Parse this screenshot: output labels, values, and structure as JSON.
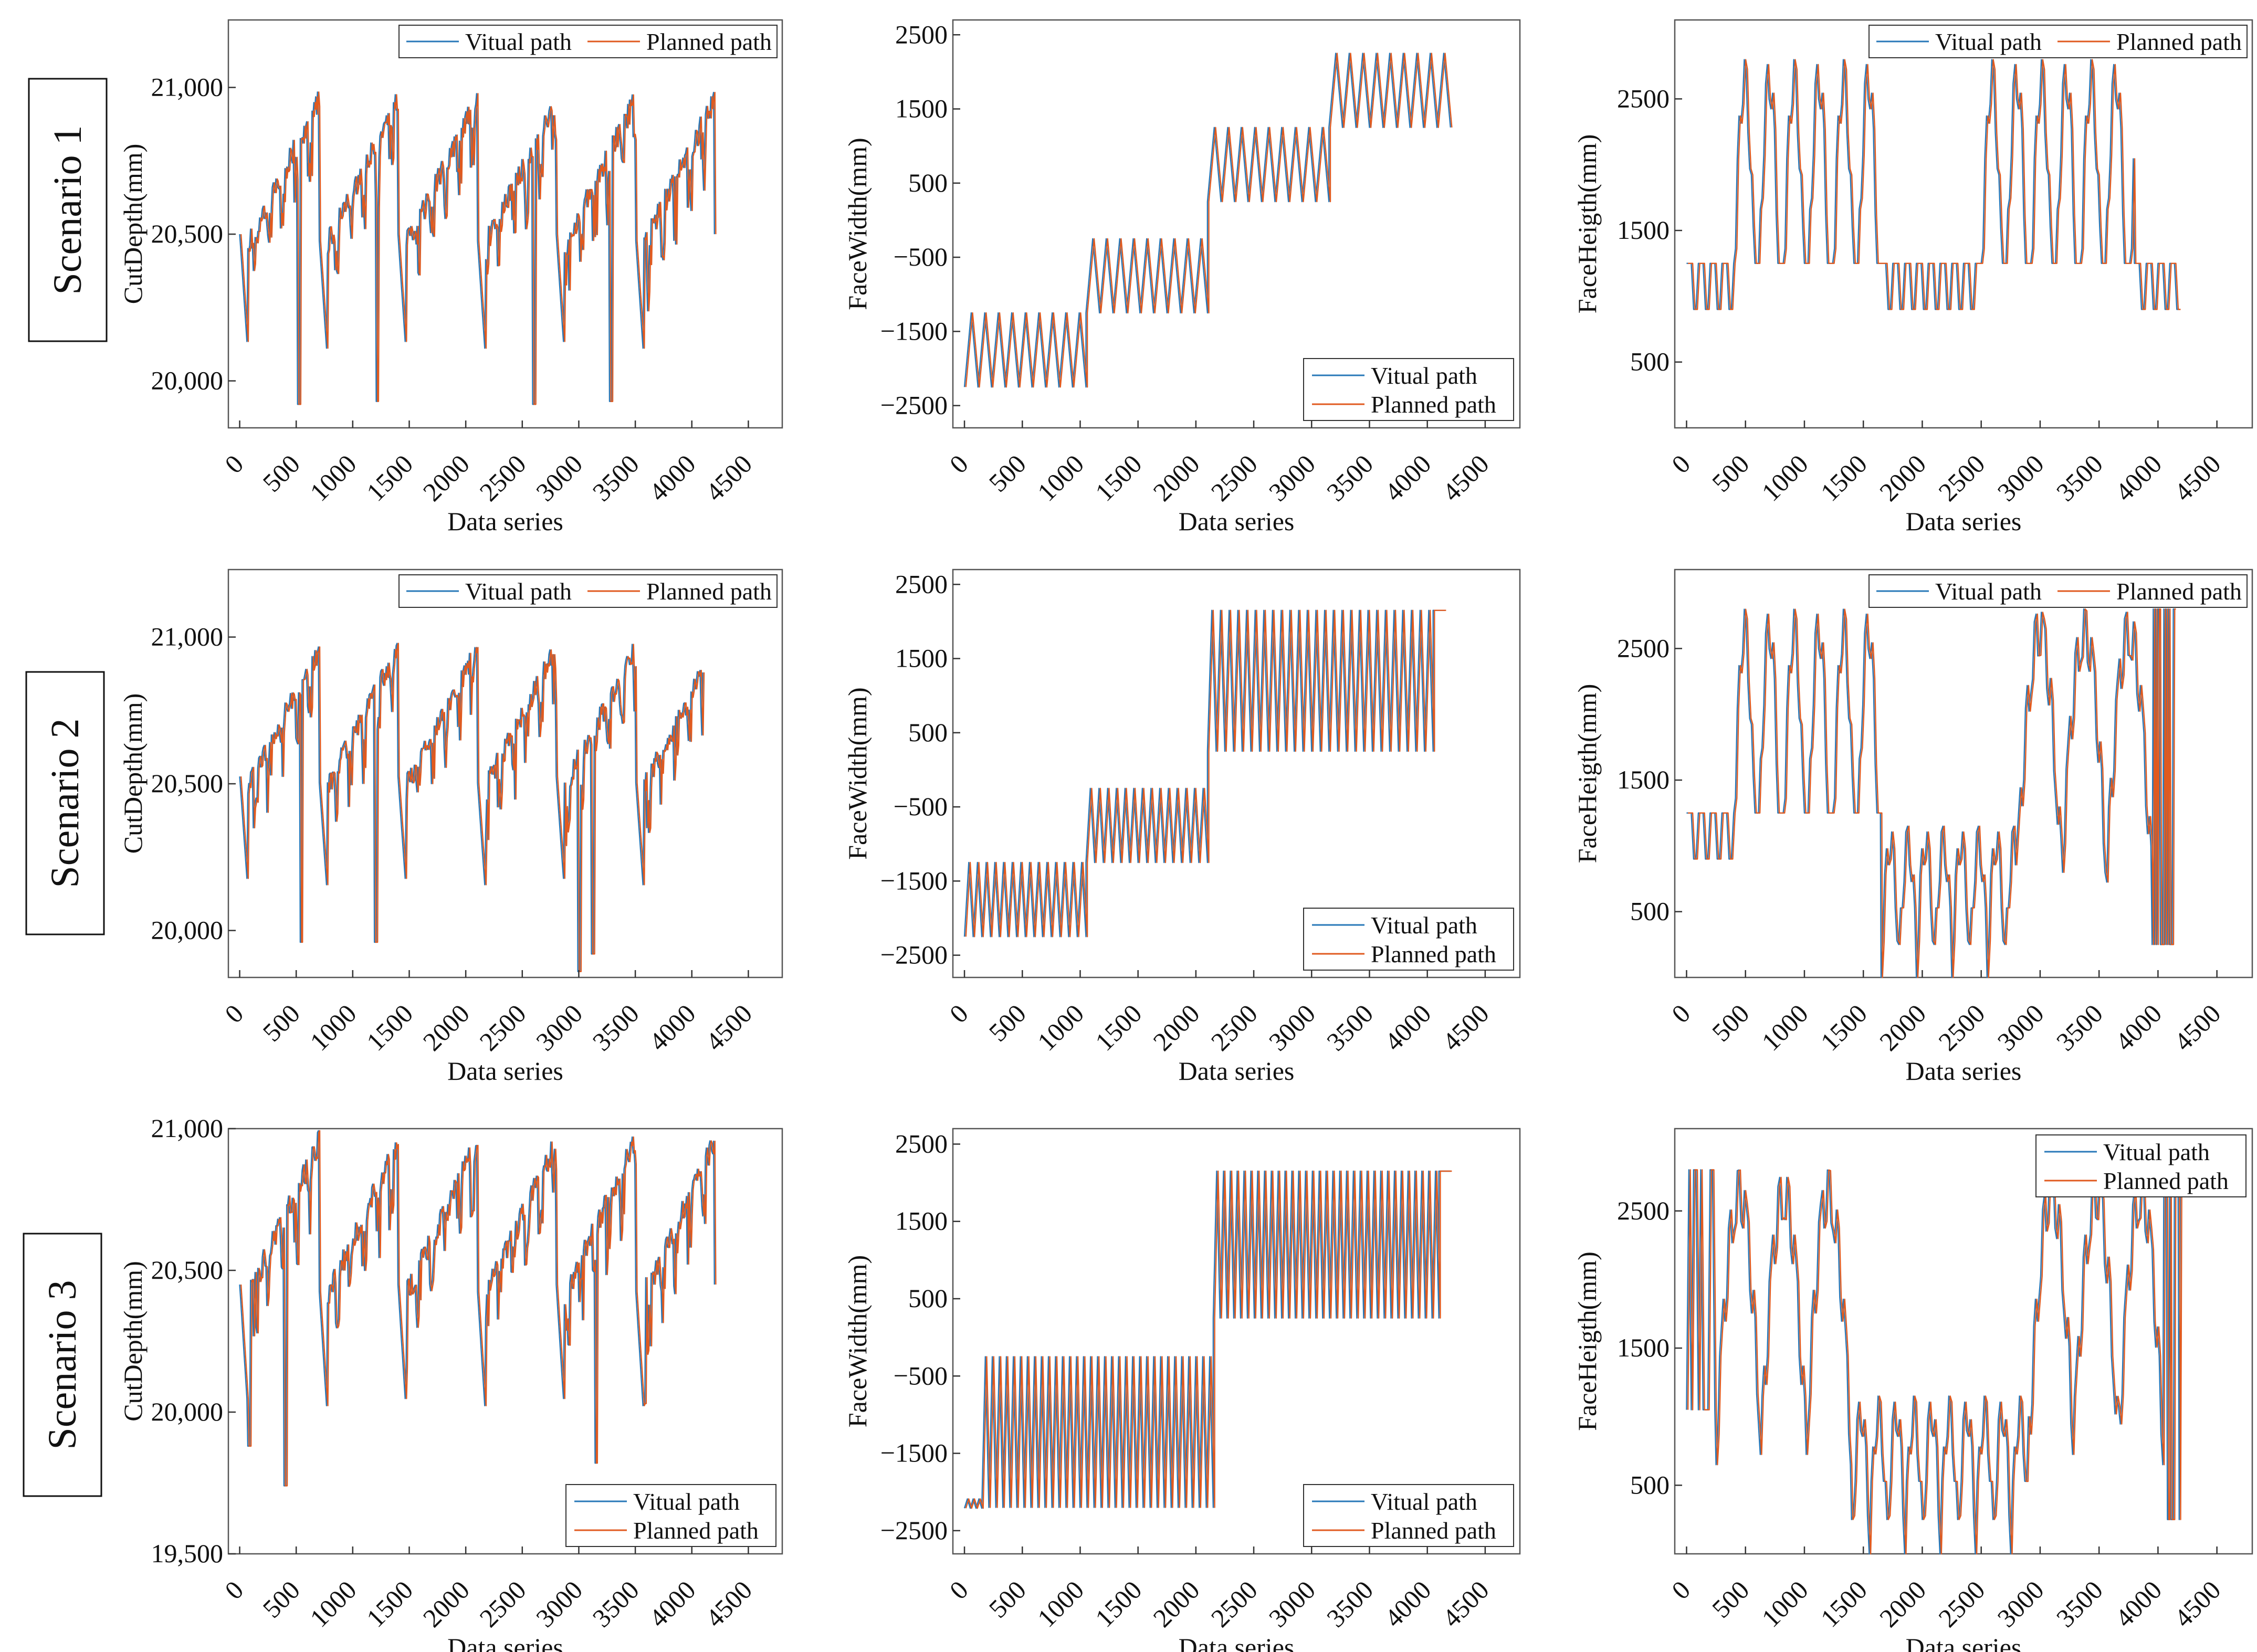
{
  "figure": {
    "scenario_labels": [
      "Scenario 1",
      "Scenario 2",
      "Scenario 3"
    ],
    "colors": {
      "virtual": "#2878b8",
      "planned": "#e05a1f",
      "axis": "#1a1a1a"
    }
  },
  "chart_data": [
    {
      "id": "s1-depth",
      "type": "line",
      "scenario": "Scenario 1",
      "title": "",
      "xlabel": "Data series",
      "ylabel": "CutDepth(mm)",
      "xlim": [
        -100,
        4800
      ],
      "ylim": [
        19840,
        21230
      ],
      "xticks": [
        0,
        500,
        1000,
        1500,
        2000,
        2500,
        3000,
        3500,
        4000,
        4500
      ],
      "yticks": [
        20000,
        20500,
        21000
      ],
      "ytick_labels": [
        "20,000",
        "20,500",
        "21,000"
      ],
      "legend_loc": "top-right",
      "gen": {
        "kind": "depth",
        "n": 4200,
        "period": 700,
        "min": 20000,
        "max": 21000,
        "spikes": [
          [
            520,
            19920
          ],
          [
            1210,
            19930
          ],
          [
            2600,
            19920
          ],
          [
            3280,
            19930
          ]
        ]
      },
      "series": [
        {
          "name": "Vitual path",
          "color": "#2878b8"
        },
        {
          "name": "Planned path",
          "color": "#e05a1f"
        }
      ]
    },
    {
      "id": "s1-width",
      "type": "line",
      "scenario": "Scenario 1",
      "title": "",
      "xlabel": "Data series",
      "ylabel": "FaceWidth(mm)",
      "xlim": [
        -100,
        4800
      ],
      "ylim": [
        -2800,
        2700
      ],
      "xticks": [
        0,
        500,
        1000,
        1500,
        2000,
        2500,
        3000,
        3500,
        4000,
        4500
      ],
      "yticks": [
        -2500,
        -1500,
        -500,
        500,
        1500,
        2500
      ],
      "ytick_labels": [
        "−2500",
        "−1500",
        "−500",
        "500",
        "1500",
        "2500"
      ],
      "legend_loc": "bottom-right",
      "gen": {
        "kind": "steps",
        "n": 4200,
        "cycles": 36,
        "levels": [
          [
            0,
            1050,
            -2250,
            -1250
          ],
          [
            1050,
            2100,
            -1250,
            -250
          ],
          [
            2100,
            3150,
            250,
            1250
          ],
          [
            3150,
            4200,
            1250,
            2250
          ]
        ]
      },
      "series": [
        {
          "name": "Vitual path",
          "color": "#2878b8"
        },
        {
          "name": "Planned path",
          "color": "#e05a1f"
        }
      ]
    },
    {
      "id": "s1-height",
      "type": "line",
      "scenario": "Scenario 1",
      "title": "",
      "xlabel": "Data series",
      "ylabel": "FaceHeigth(mm)",
      "xlim": [
        -100,
        4800
      ],
      "ylim": [
        0,
        3100
      ],
      "xticks": [
        0,
        500,
        1000,
        1500,
        2000,
        2500,
        3000,
        3500,
        4000,
        4500
      ],
      "yticks": [
        500,
        1500,
        2500
      ],
      "ytick_labels": [
        "500",
        "1500",
        "2500"
      ],
      "legend_loc": "top-right",
      "gen": {
        "kind": "height",
        "n": 4200,
        "segments": [
          [
            0,
            400,
            "low"
          ],
          [
            400,
            1650,
            "high"
          ],
          [
            1650,
            2500,
            "low"
          ],
          [
            2500,
            3800,
            "high"
          ],
          [
            3800,
            4200,
            "low"
          ]
        ]
      },
      "series": [
        {
          "name": "Vitual path",
          "color": "#2878b8"
        },
        {
          "name": "Planned path",
          "color": "#e05a1f"
        }
      ]
    },
    {
      "id": "s2-depth",
      "type": "line",
      "scenario": "Scenario 2",
      "title": "",
      "xlabel": "Data series",
      "ylabel": "CutDepth(mm)",
      "xlim": [
        -100,
        4800
      ],
      "ylim": [
        19840,
        21230
      ],
      "xticks": [
        0,
        500,
        1000,
        1500,
        2000,
        2500,
        3000,
        3500,
        4000,
        4500
      ],
      "yticks": [
        20000,
        20500,
        21000
      ],
      "ytick_labels": [
        "20,000",
        "20,500",
        "21,000"
      ],
      "legend_loc": "top-right",
      "gen": {
        "kind": "depth",
        "n": 4100,
        "period": 700,
        "min": 20050,
        "max": 21000,
        "spikes": [
          [
            540,
            19960
          ],
          [
            1200,
            19960
          ],
          [
            3000,
            19860
          ],
          [
            3120,
            19920
          ]
        ]
      },
      "series": [
        {
          "name": "Vitual path",
          "color": "#2878b8"
        },
        {
          "name": "Planned path",
          "color": "#e05a1f"
        }
      ]
    },
    {
      "id": "s2-width",
      "type": "line",
      "scenario": "Scenario 2",
      "title": "",
      "xlabel": "Data series",
      "ylabel": "FaceWidth(mm)",
      "xlim": [
        -100,
        4800
      ],
      "ylim": [
        -2800,
        2700
      ],
      "xticks": [
        0,
        500,
        1000,
        1500,
        2000,
        2500,
        3000,
        3500,
        4000,
        4500
      ],
      "yticks": [
        -2500,
        -1500,
        -500,
        500,
        1500,
        2500
      ],
      "ytick_labels": [
        "−2500",
        "−1500",
        "−500",
        "500",
        "1500",
        "2500"
      ],
      "legend_loc": "bottom-right",
      "gen": {
        "kind": "steps",
        "n": 4150,
        "cycles": 56,
        "levels": [
          [
            0,
            1050,
            -2250,
            -1250
          ],
          [
            1050,
            2100,
            -1250,
            -250
          ],
          [
            2100,
            4050,
            250,
            2150
          ]
        ],
        "tail": [
          4050,
          4150,
          2150
        ]
      },
      "series": [
        {
          "name": "Vitual path",
          "color": "#2878b8"
        },
        {
          "name": "Planned path",
          "color": "#e05a1f"
        }
      ]
    },
    {
      "id": "s2-height",
      "type": "line",
      "scenario": "Scenario 2",
      "title": "",
      "xlabel": "Data series",
      "ylabel": "FaceHeigth(mm)",
      "xlim": [
        -100,
        4800
      ],
      "ylim": [
        0,
        3100
      ],
      "xticks": [
        0,
        500,
        1000,
        1500,
        2000,
        2500,
        3000,
        3500,
        4000,
        4500
      ],
      "yticks": [
        500,
        1500,
        2500
      ],
      "ytick_labels": [
        "500",
        "1500",
        "2500"
      ],
      "legend_loc": "top-right",
      "gen": {
        "kind": "height",
        "n": 4150,
        "segments": [
          [
            0,
            400,
            "low"
          ],
          [
            400,
            1650,
            "high"
          ],
          [
            1650,
            2800,
            "lowwave"
          ],
          [
            2800,
            3950,
            "highwave"
          ],
          [
            3950,
            4150,
            "tail"
          ]
        ]
      },
      "series": [
        {
          "name": "Vitual path",
          "color": "#2878b8"
        },
        {
          "name": "Planned path",
          "color": "#e05a1f"
        }
      ]
    },
    {
      "id": "s3-depth",
      "type": "line",
      "scenario": "Scenario 3",
      "title": "",
      "xlabel": "Data series",
      "ylabel": "CutDepth(mm)",
      "xlim": [
        -100,
        4800
      ],
      "ylim": [
        19500,
        21000
      ],
      "xticks": [
        0,
        500,
        1000,
        1500,
        2000,
        2500,
        3000,
        3500,
        4000,
        4500
      ],
      "yticks": [
        19500,
        20000,
        20500,
        21000
      ],
      "ytick_labels": [
        "19,500",
        "20,000",
        "20,500",
        "21,000"
      ],
      "legend_loc": "bottom-right",
      "gen": {
        "kind": "depth",
        "n": 4200,
        "period": 700,
        "min": 19900,
        "max": 21000,
        "spikes": [
          [
            80,
            19880
          ],
          [
            400,
            19740
          ],
          [
            3150,
            19820
          ],
          [
            3580,
            20030
          ]
        ]
      },
      "series": [
        {
          "name": "Vitual path",
          "color": "#2878b8"
        },
        {
          "name": "Planned path",
          "color": "#e05a1f"
        }
      ]
    },
    {
      "id": "s3-width",
      "type": "line",
      "scenario": "Scenario 3",
      "title": "",
      "xlabel": "Data series",
      "ylabel": "FaceWidth(mm)",
      "xlim": [
        -100,
        4800
      ],
      "ylim": [
        -2800,
        2700
      ],
      "xticks": [
        0,
        500,
        1000,
        1500,
        2000,
        2500,
        3000,
        3500,
        4000,
        4500
      ],
      "yticks": [
        -2500,
        -1500,
        -500,
        500,
        1500,
        2500
      ],
      "ytick_labels": [
        "−2500",
        "−1500",
        "−500",
        "500",
        "1500",
        "2500"
      ],
      "legend_loc": "bottom-right",
      "gen": {
        "kind": "steps",
        "n": 4200,
        "cycles": 70,
        "levels": [
          [
            150,
            2150,
            -2200,
            -250
          ],
          [
            2150,
            4100,
            250,
            2150
          ]
        ],
        "head": [
          0,
          150,
          -2150
        ],
        "tail": [
          4100,
          4200,
          2150
        ]
      },
      "series": [
        {
          "name": "Vitual path",
          "color": "#2878b8"
        },
        {
          "name": "Planned path",
          "color": "#e05a1f"
        }
      ]
    },
    {
      "id": "s3-height",
      "type": "line",
      "scenario": "Scenario 3",
      "title": "",
      "xlabel": "Data series",
      "ylabel": "FaceHeigth(mm)",
      "xlim": [
        -100,
        4800
      ],
      "ylim": [
        0,
        3100
      ],
      "xticks": [
        0,
        500,
        1000,
        1500,
        2000,
        2500,
        3000,
        3500,
        4000,
        4500
      ],
      "yticks": [
        500,
        1500,
        2500
      ],
      "ytick_labels": [
        "500",
        "1500",
        "2500"
      ],
      "legend_loc": "top-right",
      "gen": {
        "kind": "height",
        "n": 4200,
        "segments": [
          [
            0,
            250,
            "spiky"
          ],
          [
            250,
            1400,
            "highwave"
          ],
          [
            1400,
            2900,
            "lowwave"
          ],
          [
            2900,
            4050,
            "highwave"
          ],
          [
            4050,
            4200,
            "tail"
          ]
        ]
      },
      "series": [
        {
          "name": "Vitual path",
          "color": "#2878b8"
        },
        {
          "name": "Planned path",
          "color": "#e05a1f"
        }
      ]
    }
  ]
}
